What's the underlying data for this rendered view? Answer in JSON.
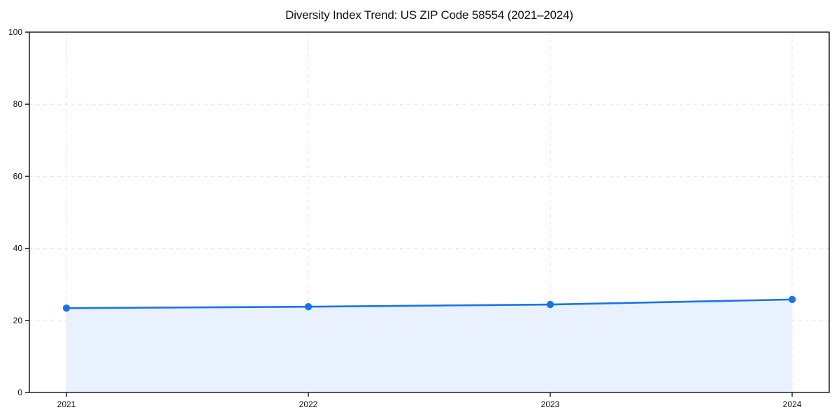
{
  "chart_data": {
    "type": "line",
    "title": "Diversity Index Trend: US ZIP Code 58554 (2021–2024)",
    "categories": [
      "2021",
      "2022",
      "2023",
      "2024"
    ],
    "values": [
      23.4,
      23.8,
      24.4,
      25.8
    ],
    "series_name": "Diversity Index",
    "xlabel": "",
    "ylabel": "",
    "ylim": [
      0,
      100
    ],
    "yticks": [
      0,
      20,
      40,
      60,
      80,
      100
    ],
    "grid": true,
    "grid_style": "dashed",
    "legend": "none",
    "area_fill": true,
    "markers": true,
    "colors": {
      "line": "#1a73e8",
      "marker": "#1a73e8",
      "area": "#e8f1fd",
      "grid": "#e3e3e3",
      "frame": "#111111",
      "text": "#111111",
      "background": "#ffffff"
    }
  }
}
